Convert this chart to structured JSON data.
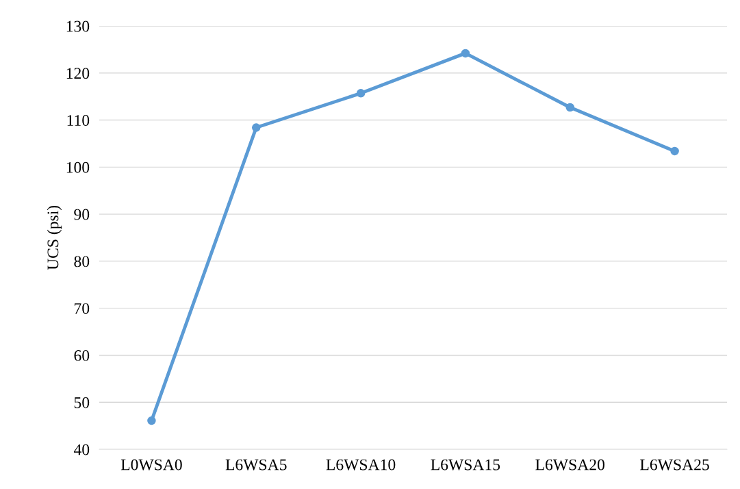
{
  "chart_data": {
    "type": "line",
    "ylabel": "UCS (psi)",
    "categories": [
      "L0WSA0",
      "L6WSA5",
      "L6WSA10",
      "L6WSA15",
      "L6WSA20",
      "L6WSA25"
    ],
    "series": [
      {
        "color": "#5b9bd5",
        "values": [
          46.1,
          108.4,
          115.7,
          124.2,
          112.7,
          103.4
        ]
      }
    ],
    "ylim": [
      40,
      130
    ],
    "yticks": [
      40,
      50,
      60,
      70,
      80,
      90,
      100,
      110,
      120,
      130
    ],
    "grid": "y",
    "marker": "circle",
    "line_style": "solid"
  }
}
